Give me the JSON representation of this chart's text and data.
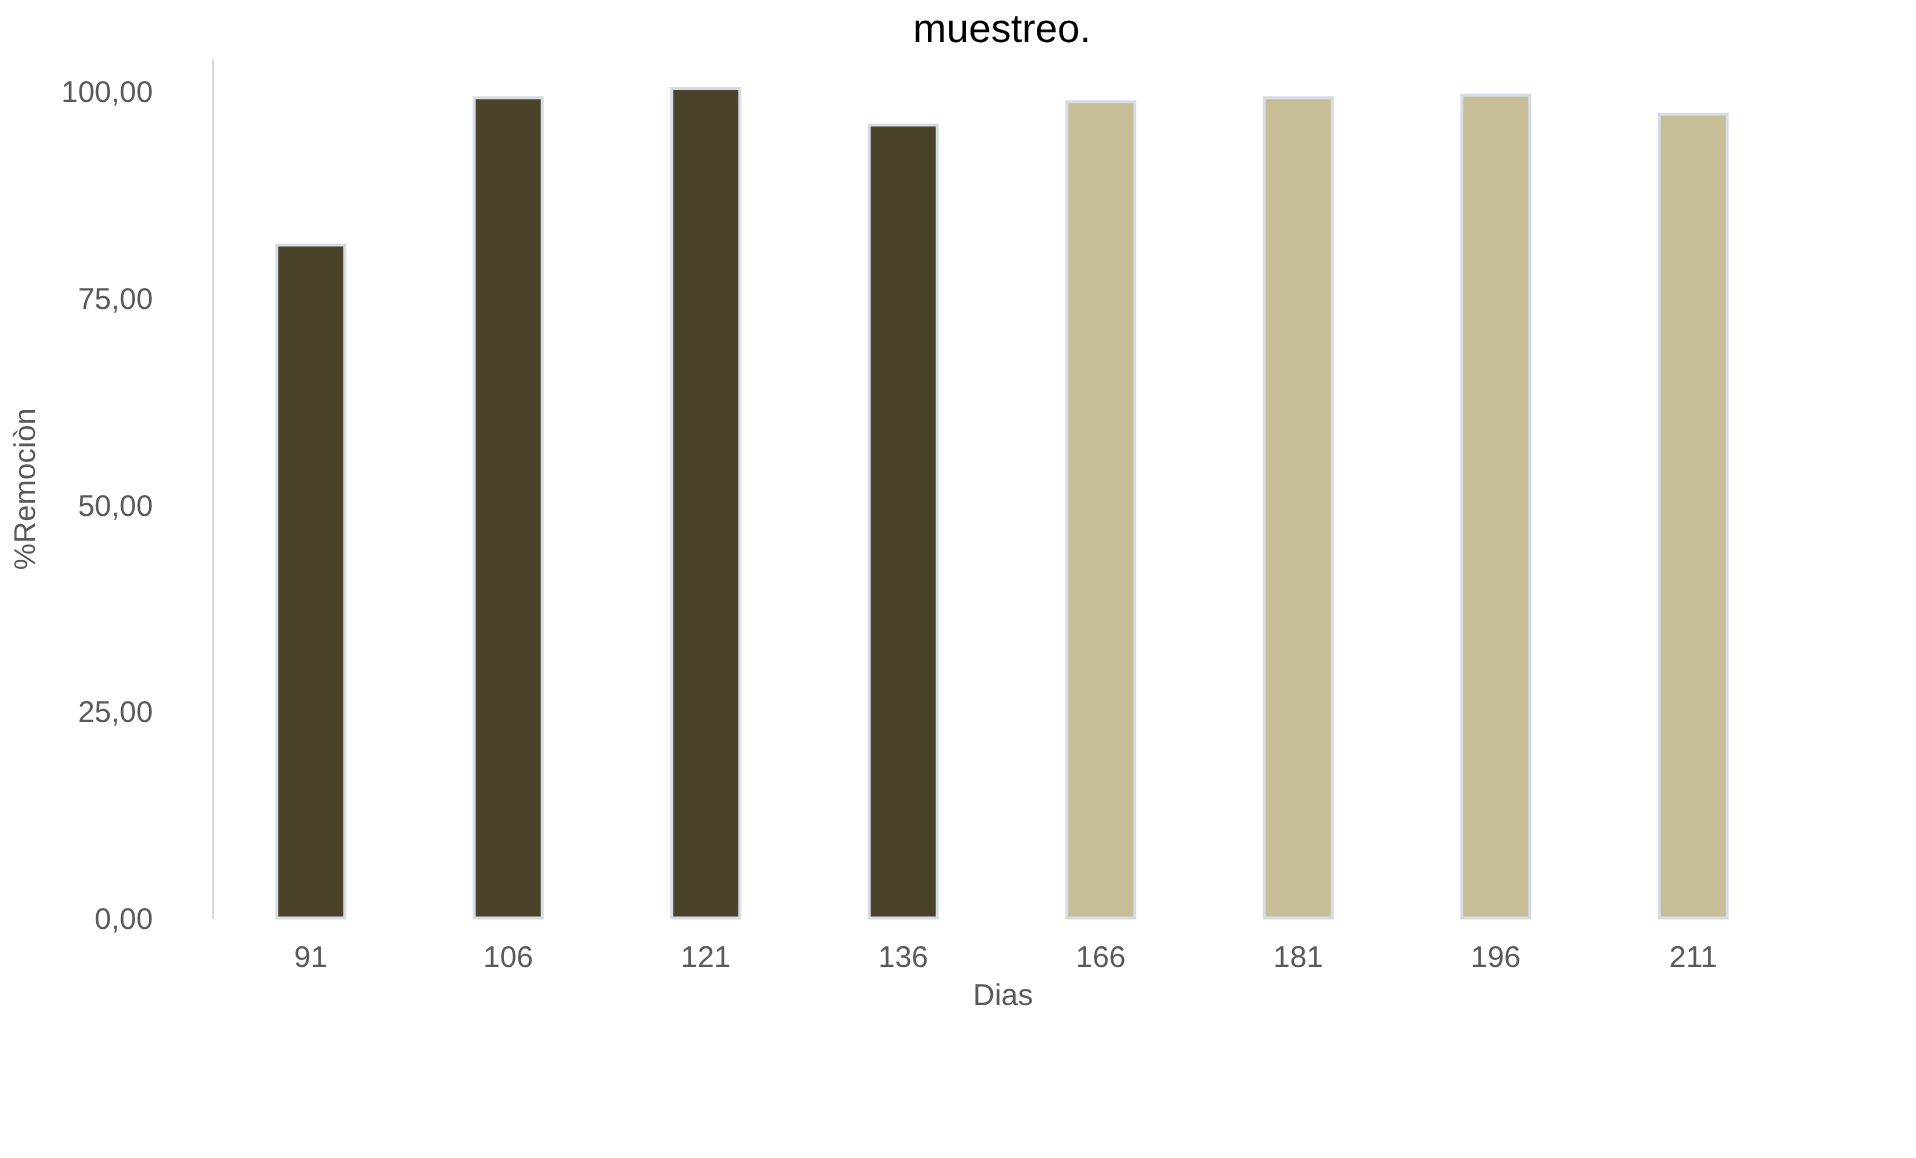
{
  "chart_data": {
    "type": "bar",
    "title": "muestreo.",
    "xlabel": "Dias",
    "ylabel": "%Remociòn",
    "categories": [
      "91",
      "106",
      "121",
      "136",
      "166",
      "181",
      "196",
      "211"
    ],
    "values": [
      81.4,
      99.2,
      100.3,
      95.9,
      98.7,
      99.2,
      99.5,
      97.2
    ],
    "colors": [
      "#4a4329",
      "#4a4329",
      "#4a4329",
      "#4a4329",
      "#c7be97",
      "#c7be97",
      "#c7be97",
      "#c7be97"
    ],
    "ylim": [
      0,
      104
    ],
    "yticks": [
      {
        "value": 0,
        "label": "0,00"
      },
      {
        "value": 25,
        "label": "25,00"
      },
      {
        "value": 50,
        "label": "50,00"
      },
      {
        "value": 75,
        "label": "75,00"
      },
      {
        "value": 100,
        "label": "100,00"
      }
    ],
    "grid": false
  }
}
